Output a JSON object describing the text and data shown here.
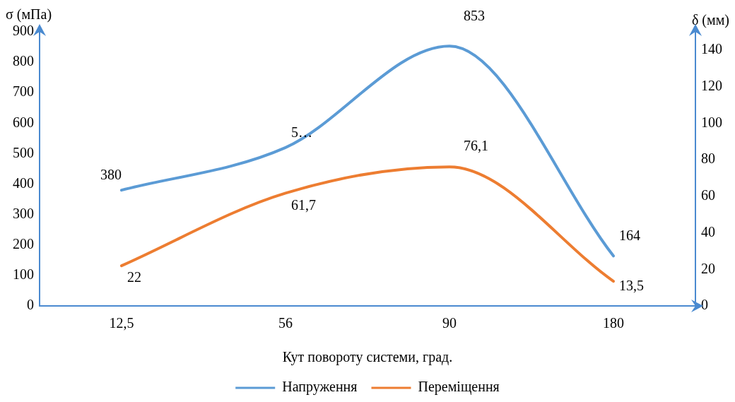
{
  "chart_data": {
    "type": "line",
    "xlabel": "Кут повороту системи, град.",
    "ylabel": "σ (мПа)",
    "y2label": "δ (мм)",
    "categories": [
      "12,5",
      "56",
      "90",
      "180"
    ],
    "series": [
      {
        "name": "Напруження",
        "color": "#5b9bd5",
        "values": [
          380,
          520,
          853,
          164
        ],
        "value_labels": [
          "380",
          "5…",
          "853",
          "164"
        ]
      },
      {
        "name": "Переміщення",
        "color": "#ed7d31",
        "axis": "y2",
        "values": [
          22,
          61.7,
          76.1,
          13.5
        ],
        "value_labels": [
          "22",
          "61,7",
          "76,1",
          "13,5"
        ]
      }
    ],
    "ylim": [
      0,
      900
    ],
    "yticks": [
      0,
      100,
      200,
      300,
      400,
      500,
      600,
      700,
      800,
      900
    ],
    "y2lim": [
      0,
      150
    ],
    "y2ticks": [
      0,
      20,
      40,
      60,
      80,
      100,
      120,
      140
    ],
    "grid": false,
    "legend": "bottom",
    "marker": "none",
    "line_style": "solid"
  }
}
